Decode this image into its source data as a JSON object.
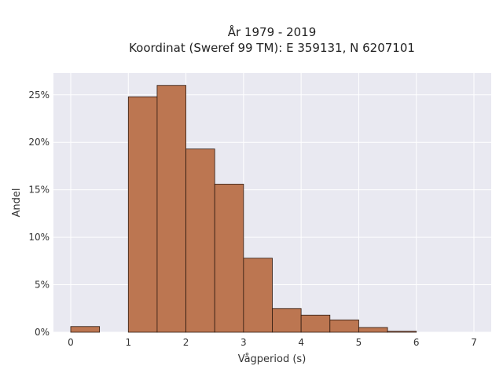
{
  "chart_data": {
    "type": "bar",
    "title_lines": [
      "År 1979 - 2019",
      "Koordinat (Sweref 99 TM): E 359131, N 6207101"
    ],
    "xlabel": "Vågperiod (s)",
    "ylabel": "Andel",
    "x_ticks": [
      "0",
      "1",
      "2",
      "3",
      "4",
      "5",
      "6",
      "7"
    ],
    "x_tick_values": [
      0,
      1,
      2,
      3,
      4,
      5,
      6,
      7
    ],
    "y_ticks": [
      "0%",
      "5%",
      "10%",
      "15%",
      "20%",
      "25%"
    ],
    "y_tick_values": [
      0,
      5,
      10,
      15,
      20,
      25
    ],
    "xlim": [
      -0.3,
      7.3
    ],
    "ylim": [
      0,
      27.3
    ],
    "bins": [
      {
        "start": 0.0,
        "end": 0.5,
        "value": 0.6
      },
      {
        "start": 1.0,
        "end": 1.5,
        "value": 24.8
      },
      {
        "start": 1.5,
        "end": 2.0,
        "value": 26.0
      },
      {
        "start": 2.0,
        "end": 2.5,
        "value": 19.3
      },
      {
        "start": 2.5,
        "end": 3.0,
        "value": 15.6
      },
      {
        "start": 3.0,
        "end": 3.5,
        "value": 7.8
      },
      {
        "start": 3.5,
        "end": 4.0,
        "value": 2.5
      },
      {
        "start": 4.0,
        "end": 4.5,
        "value": 1.8
      },
      {
        "start": 4.5,
        "end": 5.0,
        "value": 1.3
      },
      {
        "start": 5.0,
        "end": 5.5,
        "value": 0.5
      },
      {
        "start": 5.5,
        "end": 6.0,
        "value": 0.1
      }
    ],
    "grid": true,
    "colors": {
      "bar_fill": "#bc7651",
      "bar_edge": "#2e1a10",
      "plot_background": "#e9e9f1",
      "grid": "#ffffff"
    }
  }
}
